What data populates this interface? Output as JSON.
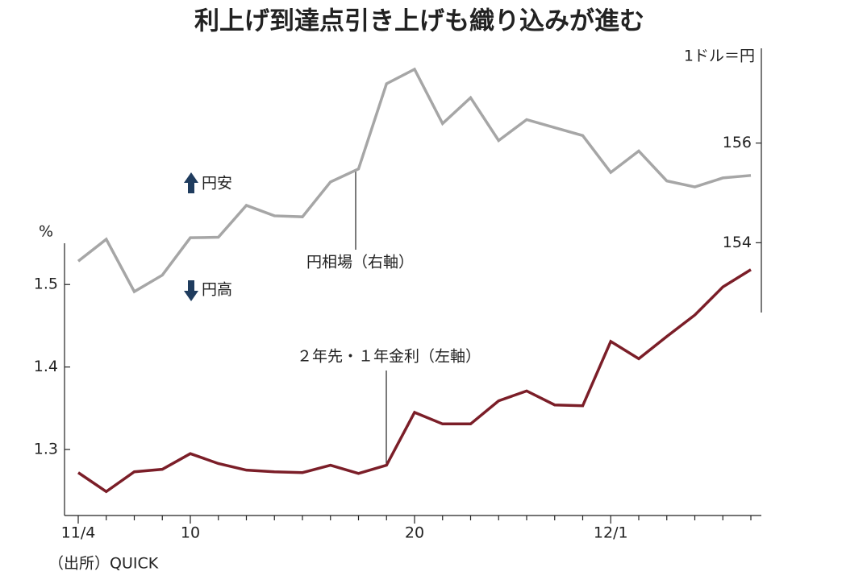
{
  "chart_data": {
    "type": "line",
    "title": "利上げ到達点引き上げも織り込みが進む",
    "source": "（出所）QUICK",
    "ylabel": "%",
    "y2label": "1ドル＝円",
    "categories": [
      "11/4",
      null,
      null,
      null,
      "10",
      null,
      null,
      null,
      null,
      null,
      null,
      null,
      "20",
      null,
      null,
      null,
      null,
      null,
      null,
      "12/1",
      null,
      null,
      null,
      null,
      null
    ],
    "ylim": [
      1.22,
      1.55
    ],
    "yticks": [
      1.3,
      1.4,
      1.5
    ],
    "y2lim": [
      152.6,
      157.9
    ],
    "y2ticks": [
      154,
      156
    ],
    "series": [
      {
        "name": "円相場（右軸）",
        "color": "#a6a6a6",
        "axis": "y2",
        "values": [
          153.63,
          154.07,
          153.02,
          153.35,
          154.1,
          154.11,
          154.75,
          154.54,
          154.52,
          155.22,
          155.48,
          157.19,
          157.48,
          156.39,
          156.91,
          156.05,
          156.47,
          156.31,
          156.15,
          155.41,
          155.84,
          155.24,
          155.12,
          155.3,
          155.35
        ]
      },
      {
        "name": "２年先・１年金利（左軸）",
        "color": "#7b1e28",
        "axis": "y",
        "values": [
          1.272,
          1.249,
          1.273,
          1.276,
          1.295,
          1.283,
          1.275,
          1.273,
          1.272,
          1.281,
          1.271,
          1.281,
          1.345,
          1.331,
          1.331,
          1.359,
          1.371,
          1.354,
          1.353,
          1.431,
          1.41,
          1.437,
          1.463,
          1.497,
          1.518
        ]
      }
    ],
    "annotations": [
      "円安",
      "円高"
    ]
  }
}
